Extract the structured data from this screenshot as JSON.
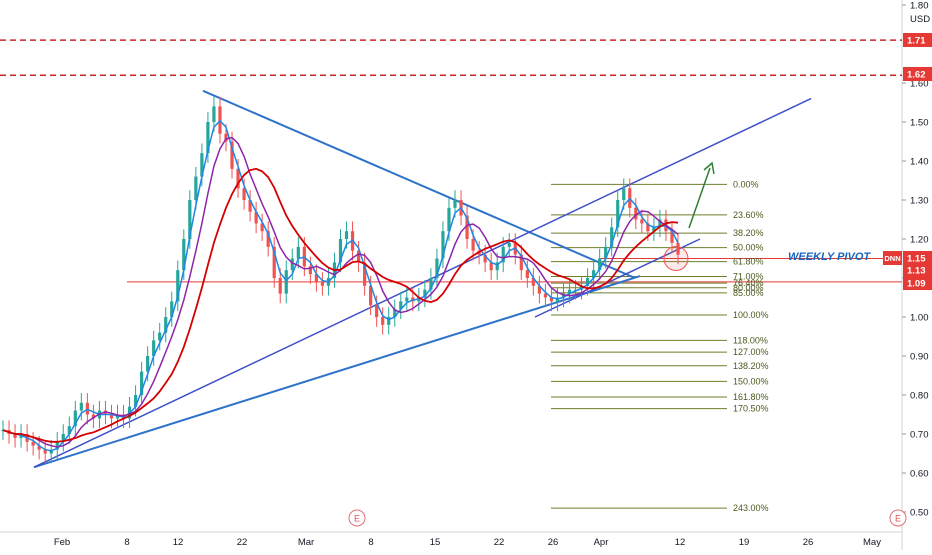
{
  "chart_data": {
    "type": "candlestick",
    "currency": "USD",
    "ylim": [
      0.5,
      1.8
    ],
    "y_ticks": [
      "0.50",
      "0.60",
      "0.70",
      "0.80",
      "0.90",
      "1.00",
      "1.10",
      "1.20",
      "1.30",
      "1.40",
      "1.50",
      "1.60",
      "1.80"
    ],
    "x_ticks": [
      "Feb",
      "8",
      "12",
      "22",
      "Mar",
      "8",
      "15",
      "22",
      "26",
      "Apr",
      "12",
      "19",
      "26",
      "May"
    ],
    "earnings_markers": [
      "E",
      "E"
    ],
    "symbol": "DNN",
    "price_tags": [
      {
        "label": "DNN",
        "value": "1.15",
        "color": "#e53935"
      },
      {
        "label": "",
        "value": "1.13",
        "color": "#e53935"
      },
      {
        "label": "",
        "value": "1.09",
        "color": "#e53935"
      },
      {
        "label": "",
        "value": "1.71",
        "color": "#e53935"
      },
      {
        "label": "",
        "value": "1.62",
        "color": "#e53935"
      }
    ],
    "resistance_levels": [
      1.71,
      1.62
    ],
    "horizontal_lines": [
      1.15,
      1.09
    ],
    "annotation": "WEEKLY PIVOT",
    "fib_levels": [
      {
        "label": "0.00%",
        "value": 1.34
      },
      {
        "label": "23.60%",
        "value": 1.262
      },
      {
        "label": "38.20%",
        "value": 1.215
      },
      {
        "label": "50.00%",
        "value": 1.178
      },
      {
        "label": "61.80%",
        "value": 1.142
      },
      {
        "label": "71.00%",
        "value": 1.104
      },
      {
        "label": "76.40%",
        "value": 1.087
      },
      {
        "label": "80.00%",
        "value": 1.075
      },
      {
        "label": "85.00%",
        "value": 1.062
      },
      {
        "label": "100.00%",
        "value": 1.005
      },
      {
        "label": "118.00%",
        "value": 0.94
      },
      {
        "label": "127.00%",
        "value": 0.91
      },
      {
        "label": "138.20%",
        "value": 0.875
      },
      {
        "label": "150.00%",
        "value": 0.835
      },
      {
        "label": "161.80%",
        "value": 0.795
      },
      {
        "label": "170.50%",
        "value": 0.765
      },
      {
        "label": "243.00%",
        "value": 0.51
      }
    ],
    "candles_close": [
      0.71,
      0.7,
      0.69,
      0.7,
      0.68,
      0.67,
      0.66,
      0.65,
      0.66,
      0.68,
      0.7,
      0.72,
      0.76,
      0.78,
      0.75,
      0.74,
      0.76,
      0.75,
      0.74,
      0.75,
      0.74,
      0.77,
      0.8,
      0.86,
      0.9,
      0.94,
      0.96,
      1.0,
      1.04,
      1.12,
      1.2,
      1.3,
      1.36,
      1.42,
      1.5,
      1.54,
      1.47,
      1.45,
      1.38,
      1.33,
      1.3,
      1.27,
      1.24,
      1.22,
      1.18,
      1.1,
      1.06,
      1.12,
      1.15,
      1.18,
      1.13,
      1.11,
      1.09,
      1.08,
      1.1,
      1.14,
      1.2,
      1.22,
      1.17,
      1.14,
      1.08,
      1.03,
      1.0,
      0.98,
      1.0,
      1.02,
      1.04,
      1.05,
      1.04,
      1.05,
      1.07,
      1.1,
      1.15,
      1.22,
      1.28,
      1.3,
      1.26,
      1.2,
      1.17,
      1.16,
      1.14,
      1.12,
      1.14,
      1.18,
      1.19,
      1.16,
      1.12,
      1.1,
      1.08,
      1.06,
      1.05,
      1.04,
      1.05,
      1.06,
      1.07,
      1.07,
      1.08,
      1.1,
      1.12,
      1.15,
      1.18,
      1.23,
      1.3,
      1.33,
      1.28,
      1.25,
      1.24,
      1.22,
      1.23,
      1.25,
      1.22,
      1.19,
      1.16
    ]
  }
}
